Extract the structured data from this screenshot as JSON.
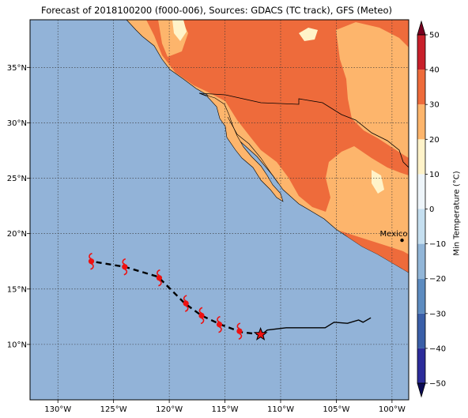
{
  "title": "Forecast of 2018100200 (f000-006), Sources: GDACS (TC track), GFS (Meteo)",
  "map": {
    "lon_range": [
      -132.5,
      -98.5
    ],
    "lat_range": [
      5,
      39.3
    ],
    "lon_ticks": [
      {
        "lon": -130,
        "label": "130°W"
      },
      {
        "lon": -125,
        "label": "125°W"
      },
      {
        "lon": -120,
        "label": "120°W"
      },
      {
        "lon": -115,
        "label": "115°W"
      },
      {
        "lon": -110,
        "label": "110°W"
      },
      {
        "lon": -105,
        "label": "105°W"
      },
      {
        "lon": -100,
        "label": "100°W"
      }
    ],
    "lat_ticks": [
      {
        "lat": 10,
        "label": "10°N"
      },
      {
        "lat": 15,
        "label": "15°N"
      },
      {
        "lat": 20,
        "label": "20°N"
      },
      {
        "lat": 25,
        "label": "25°N"
      },
      {
        "lat": 30,
        "label": "30°N"
      },
      {
        "lat": 35,
        "label": "35°N"
      }
    ],
    "ocean_color": "#92b3d8",
    "city": {
      "name": "Mexico City",
      "label_shown": "Mexico Cit",
      "lon": -99.1,
      "lat": 19.4
    }
  },
  "colorbar": {
    "label": "Min Temperature (°C)",
    "min": -50,
    "max": 50,
    "ticks": [
      -50,
      -40,
      -30,
      -20,
      -10,
      0,
      10,
      20,
      30,
      40,
      50
    ],
    "bands": [
      {
        "from": -50,
        "to": -40,
        "color": "#2c2c9a"
      },
      {
        "from": -40,
        "to": -30,
        "color": "#3a5fa8"
      },
      {
        "from": -30,
        "to": -20,
        "color": "#5d8cc0"
      },
      {
        "from": -20,
        "to": -10,
        "color": "#92b6d8"
      },
      {
        "from": -10,
        "to": 0,
        "color": "#c5dff0"
      },
      {
        "from": 0,
        "to": 10,
        "color": "#eef5fa"
      },
      {
        "from": 10,
        "to": 20,
        "color": "#fff3c9"
      },
      {
        "from": 20,
        "to": 30,
        "color": "#fdb56c"
      },
      {
        "from": 30,
        "to": 40,
        "color": "#ee6b3b"
      },
      {
        "from": 40,
        "to": 50,
        "color": "#c8202b"
      }
    ],
    "under_color": "#0b0b55",
    "over_color": "#7a0020"
  },
  "track": {
    "observed": [
      [
        -111.7,
        10.9
      ],
      [
        -111.2,
        11.3
      ],
      [
        -109.5,
        11.5
      ],
      [
        -107.5,
        11.5
      ],
      [
        -106,
        11.5
      ],
      [
        -105.2,
        12.0
      ],
      [
        -104.0,
        11.9
      ],
      [
        -103.0,
        12.2
      ],
      [
        -102.6,
        12.0
      ],
      [
        -101.9,
        12.4
      ]
    ],
    "forecast": [
      [
        -111.7,
        10.9
      ],
      [
        -113.5,
        11.1
      ],
      [
        -115.4,
        11.8
      ],
      [
        -117.1,
        12.6
      ],
      [
        -118.6,
        13.7
      ],
      [
        -120.1,
        15.2
      ],
      [
        -121.0,
        16.1
      ],
      [
        -124.0,
        17.0
      ],
      [
        -127.0,
        17.5
      ]
    ],
    "current_position": [
      -111.8,
      10.9
    ],
    "storm_symbols": [
      [
        -113.7,
        11.2
      ],
      [
        -115.5,
        11.8
      ],
      [
        -117.1,
        12.6
      ],
      [
        -118.5,
        13.7
      ],
      [
        -120.9,
        16.0
      ],
      [
        -124.0,
        17.0
      ],
      [
        -127.0,
        17.5
      ]
    ],
    "symbol_color": "#ee1111"
  }
}
